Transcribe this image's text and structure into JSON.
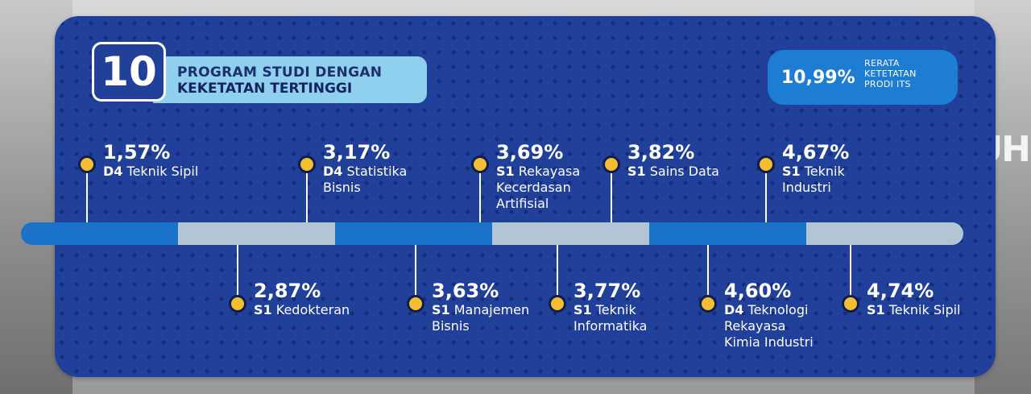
{
  "title": {
    "number": "10",
    "line1": "PROGRAM STUDI DENGAN",
    "line2": "KEKETATAN TERTINGGI"
  },
  "average": {
    "value": "10,99%",
    "label_lines": [
      "RERATA",
      "KETETATAN",
      "PRODI ITS"
    ]
  },
  "programs": [
    {
      "pct": "1,57%",
      "level": "D4",
      "name_lines": [
        "Teknik Sipil"
      ]
    },
    {
      "pct": "2,87%",
      "level": "S1",
      "name_lines": [
        "Kedokteran"
      ]
    },
    {
      "pct": "3,17%",
      "level": "D4",
      "name_lines": [
        "Statistika",
        "Bisnis"
      ]
    },
    {
      "pct": "3,63%",
      "level": "S1",
      "name_lines": [
        "Manajemen",
        "Bisnis"
      ]
    },
    {
      "pct": "3,69%",
      "level": "S1",
      "name_lines": [
        "Rekayasa",
        "Kecerdasan",
        "Artifisial"
      ]
    },
    {
      "pct": "3,77%",
      "level": "S1",
      "name_lines": [
        "Teknik",
        "Informatika"
      ]
    },
    {
      "pct": "3,82%",
      "level": "S1",
      "name_lines": [
        "Sains Data"
      ]
    },
    {
      "pct": "4,60%",
      "level": "D4",
      "name_lines": [
        "Teknologi",
        "Rekayasa",
        "Kimia Industri"
      ]
    },
    {
      "pct": "4,67%",
      "level": "S1",
      "name_lines": [
        "Teknik",
        "Industri"
      ]
    },
    {
      "pct": "4,74%",
      "level": "S1",
      "name_lines": [
        "Teknik Sipil"
      ]
    }
  ],
  "colors": {
    "panel": "#20409a",
    "bar_blue": "#1a72c9",
    "bar_grey": "#b2c5d4",
    "marker": "#f3bf31",
    "title_pill": "#8fd0ef",
    "average_pill": "#1c7dd2"
  }
}
